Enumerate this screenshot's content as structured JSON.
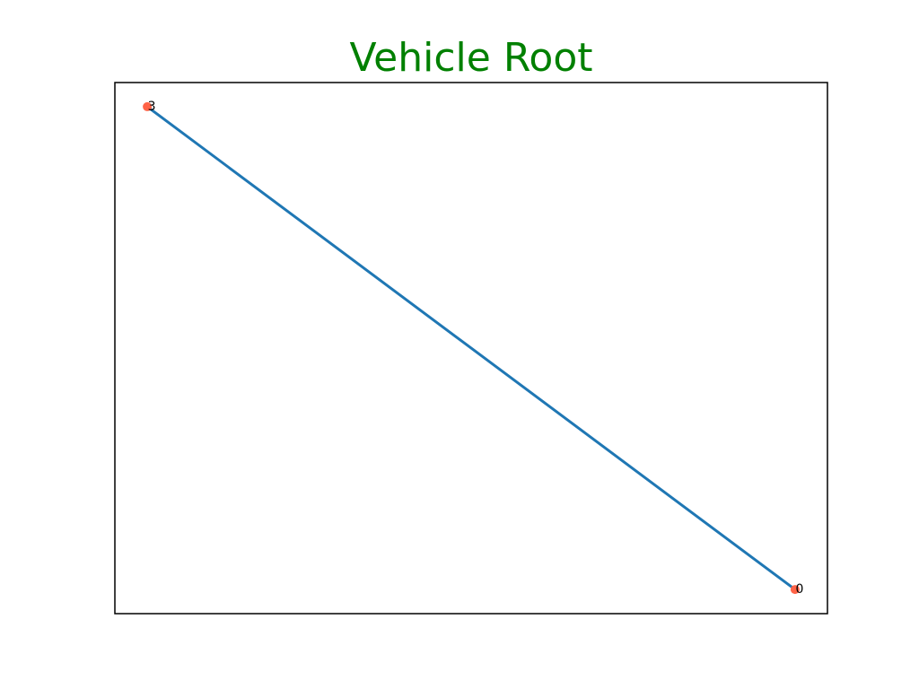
{
  "chart_data": {
    "type": "line",
    "title": "Vehicle Root",
    "title_color": "#008000",
    "line_color": "#1f77b4",
    "node_color": "#ff6347",
    "axes_visible": false,
    "grid": false,
    "xlim": [
      -0.05,
      1.05
    ],
    "ylim": [
      -0.05,
      1.05
    ],
    "nodes": [
      {
        "label": "3",
        "x": 0.0,
        "y": 1.0
      },
      {
        "label": "0",
        "x": 1.0,
        "y": 0.0
      }
    ],
    "edges": [
      {
        "from": "3",
        "to": "0"
      }
    ]
  }
}
